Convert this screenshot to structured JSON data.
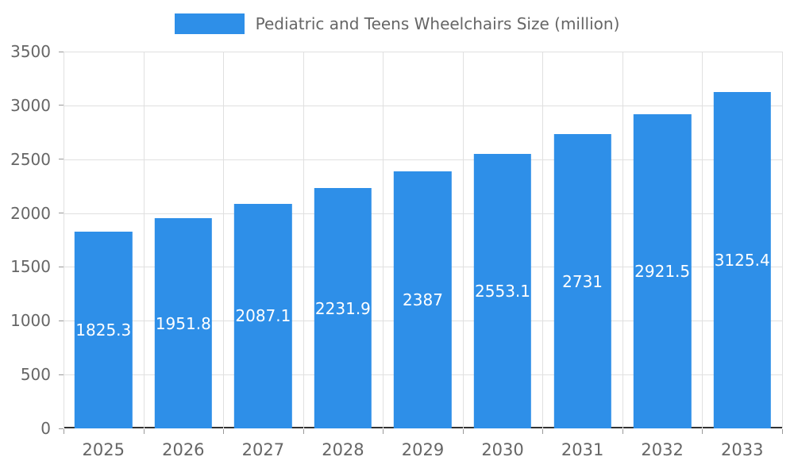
{
  "chart_data": {
    "type": "bar",
    "title": "Pediatric and Teens Wheelchairs Size (million)",
    "categories": [
      "2025",
      "2026",
      "2027",
      "2028",
      "2029",
      "2030",
      "2031",
      "2032",
      "2033"
    ],
    "values": [
      1825.3,
      1951.8,
      2087.1,
      2231.9,
      2387,
      2553.1,
      2731,
      2921.5,
      3125.4
    ],
    "xlabel": "",
    "ylabel": "",
    "ylim": [
      0,
      3500
    ],
    "yticks": [
      0,
      500,
      1000,
      1500,
      2000,
      2500,
      3000,
      3500
    ],
    "grid": true,
    "legend_position": "top",
    "colors": {
      "bar": "#2E8FE8",
      "bar_label": "#FFFFFF",
      "axis_text": "#666666",
      "gridline": "#E0E0E0",
      "baseline": "#333333",
      "tick": "#999999",
      "background": "#FFFFFF"
    }
  }
}
